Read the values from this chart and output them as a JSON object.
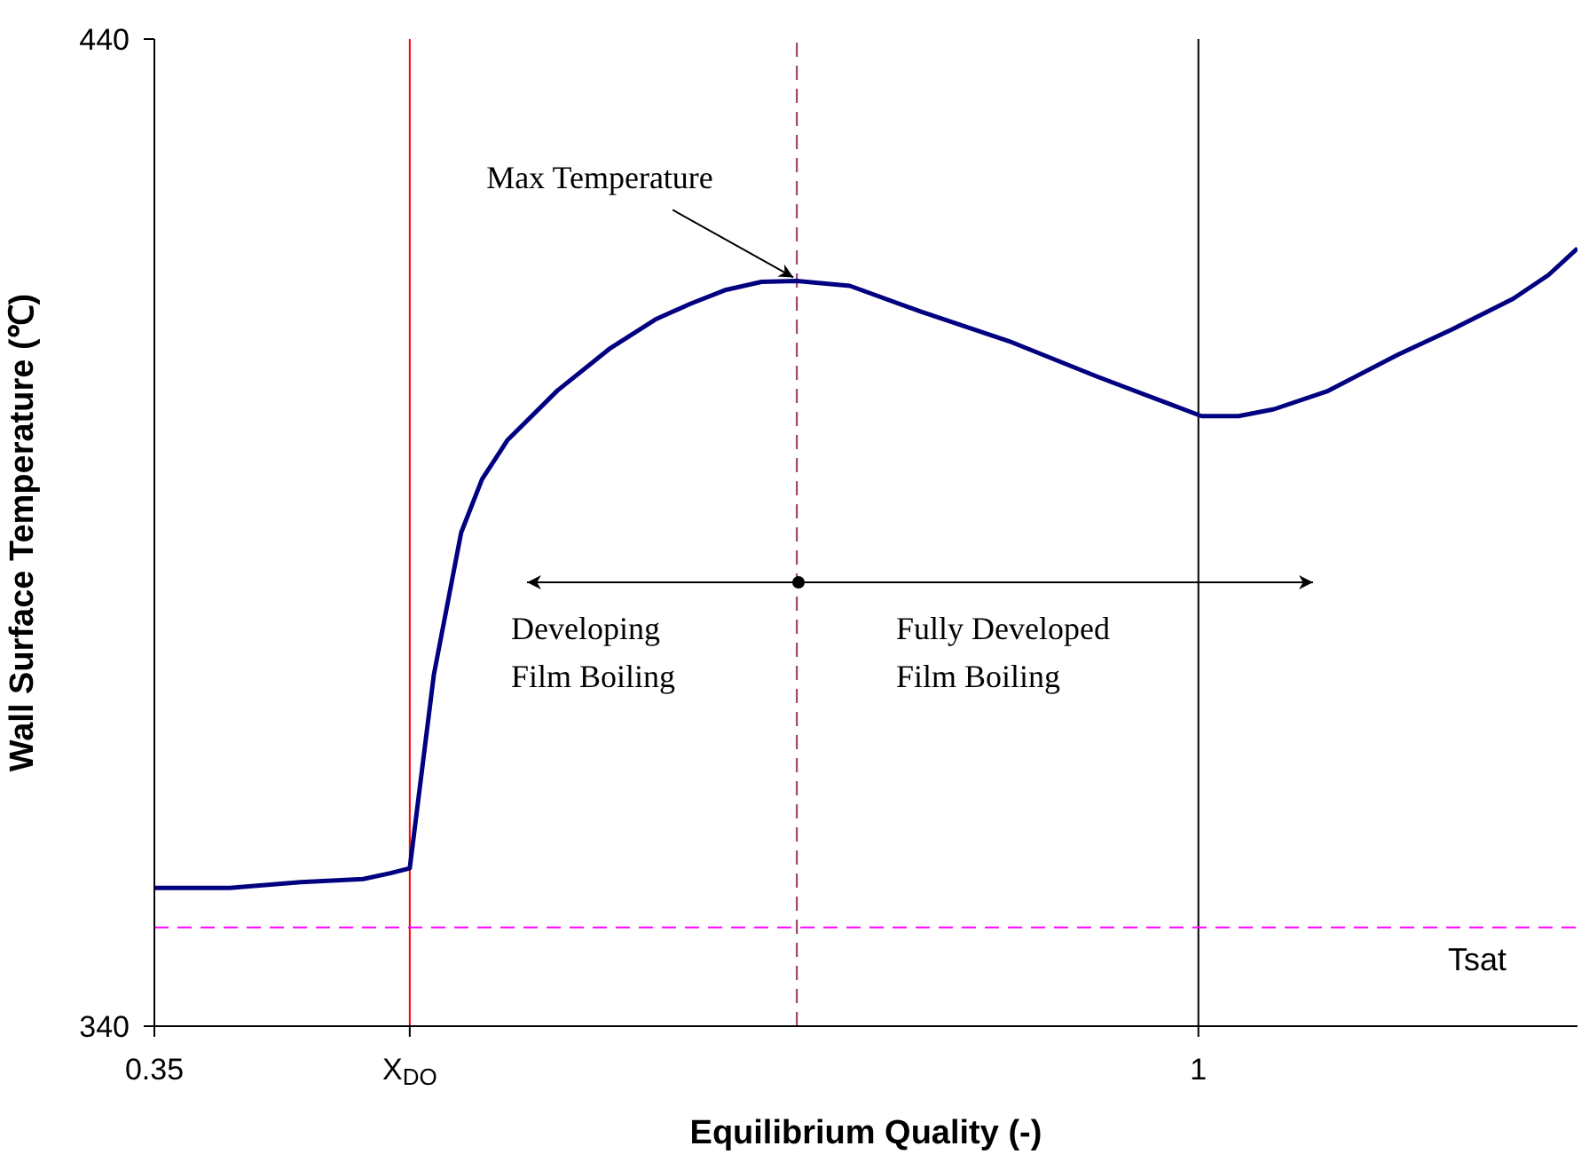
{
  "chart_data": {
    "type": "line",
    "xlabel": "Equilibrium Quality (-)",
    "ylabel": "Wall Surface Temperature (℃)",
    "x": [
      0.35,
      0.397,
      0.441,
      0.48,
      0.497,
      0.509,
      0.524,
      0.541,
      0.554,
      0.57,
      0.601,
      0.634,
      0.662,
      0.684,
      0.706,
      0.728,
      0.75,
      0.783,
      0.827,
      0.882,
      0.937,
      0.981,
      1.002,
      1.025,
      1.047,
      1.08,
      1.124,
      1.158,
      1.196,
      1.218,
      1.236
    ],
    "series": [
      {
        "color": "#000080",
        "values": [
          354,
          354,
          354.6,
          354.9,
          355.5,
          356,
          375.6,
          390,
          395.4,
          399.4,
          404.4,
          408.7,
          411.6,
          413.2,
          414.6,
          415.4,
          415.5,
          415,
          412.4,
          409.4,
          405.8,
          403.1,
          401.8,
          401.8,
          402.5,
          404.3,
          408,
          410.6,
          413.7,
          416.1,
          418.8
        ]
      }
    ],
    "xlim": [
      0.35,
      1.236
    ],
    "ylim": [
      340,
      440
    ],
    "xticks": [
      0.35,
      {
        "value": 0.509,
        "label": "X$_{DO}$"
      },
      1
    ],
    "yticks": [
      340,
      440
    ],
    "ref_lines": [
      {
        "axis": "x",
        "value": 0.509,
        "color": "#ff0000",
        "line_style": "solid"
      },
      {
        "axis": "x",
        "value": 0.75,
        "color": "#993366",
        "line_style": "dashed"
      },
      {
        "axis": "x",
        "value": 1,
        "color": "#000000",
        "line_style": "solid"
      },
      {
        "axis": "y",
        "value": 350,
        "label": "Tsat",
        "color": "#ff00ff",
        "line_style": "dashed"
      }
    ],
    "annotations": [
      {
        "text": "Max Temperature",
        "x": 0.75,
        "y": 415.5
      },
      "Developing\nFilm Boiling",
      "Fully Developed\nFilm Boiling"
    ],
    "grid": false,
    "legend": false,
    "marker": "none",
    "line_style": "solid"
  }
}
